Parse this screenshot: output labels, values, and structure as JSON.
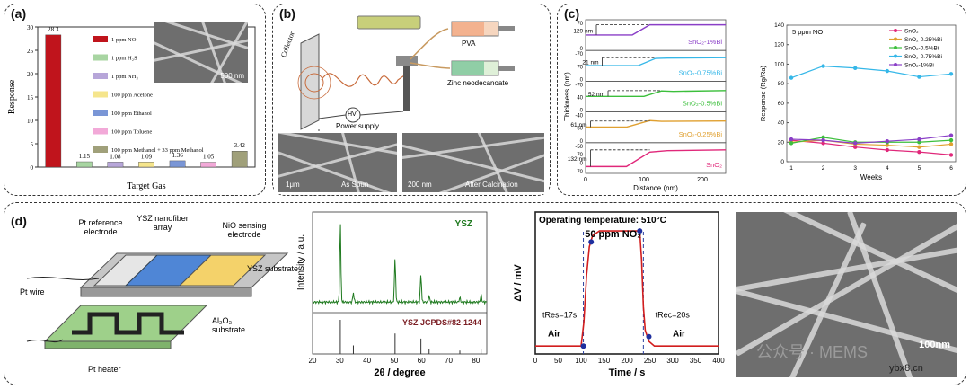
{
  "panels": {
    "a": {
      "label": "(a)"
    },
    "b": {
      "label": "(b)"
    },
    "c": {
      "label": "(c)"
    },
    "d": {
      "label": "(d)"
    }
  },
  "panel_b": {
    "collector": "Collector",
    "pva": "PVA",
    "zinc": "Zinc neodecanoate",
    "hv": "HV",
    "power": "Power supply",
    "as_spun": "As Spun",
    "after_calc": "After Calcination",
    "scale1": "1μm",
    "scale2": "200 nm"
  },
  "panel_a_sem_scale": "500 nm",
  "panel_d_schematic": {
    "pt_ref": "Pt reference electrode",
    "ysz_array": "YSZ nanofiber array",
    "nio": "NiO sensing electrode",
    "ysz_sub": "YSZ substrate",
    "pt_wire": "Pt wire",
    "al2o3": "Al₂O₃ substrate",
    "heater": "Pt heater"
  },
  "panel_d_sem_scale": "100nm",
  "watermark": "公众号 · MEMS",
  "site": "ybx8.cn",
  "chart_data": [
    {
      "type": "bar",
      "panel": "a",
      "ylabel": "Response",
      "xlabel": "Target Gas",
      "ylim": [
        0,
        30
      ],
      "yticks": [
        0,
        5,
        10,
        15,
        20,
        25,
        30
      ],
      "categories": [
        "1 ppm NO",
        "1 ppm H₂S",
        "1 ppm NH₃",
        "100 ppm Acetone",
        "100 ppm Ethanol",
        "100 ppm Toluene",
        "100 ppm Methanol + 33 ppm Methanol"
      ],
      "values": [
        28.3,
        1.15,
        1.08,
        1.09,
        1.36,
        1.05,
        3.42
      ],
      "value_labels": [
        "28.3",
        "1.15",
        "1.08",
        "1.09",
        "1.36",
        "1.05",
        "3.42"
      ],
      "colors": [
        "#c0141c",
        "#a8d5a2",
        "#b7a6d9",
        "#f5e58c",
        "#7a96d6",
        "#f2a9d8",
        "#a0a07a"
      ],
      "legend": "top-right"
    },
    {
      "type": "line",
      "panel": "c-left",
      "ylabel": "Thickness (nm)",
      "xlabel": "Distance (nm)",
      "xlim": [
        0,
        240
      ],
      "xticks": [
        0,
        100,
        200
      ],
      "series": [
        {
          "name": "SnO₂-1%Bi",
          "color": "#8a3fc7",
          "step_label": "129 nm",
          "ticks": [
            "70",
            "0"
          ],
          "x": [
            0,
            80,
            110,
            140,
            240
          ],
          "y": [
            0,
            0,
            70,
            70,
            70
          ]
        },
        {
          "name": "SnO₂-0.75%Bi",
          "color": "#35b7e8",
          "step_label": "21 nm",
          "ticks": [
            "-70",
            "70",
            "0"
          ],
          "x": [
            0,
            90,
            120,
            140,
            240
          ],
          "y": [
            0,
            0,
            50,
            52,
            55
          ]
        },
        {
          "name": "SnO₂-0.5%Bi",
          "color": "#3cbf3c",
          "step_label": "52 nm",
          "ticks": [
            "-70",
            "40",
            "0"
          ],
          "x": [
            0,
            100,
            130,
            150,
            240
          ],
          "y": [
            0,
            0,
            38,
            35,
            40
          ]
        },
        {
          "name": "SnO₂-0.25%Bi",
          "color": "#e0a030",
          "step_label": "61 nm",
          "ticks": [
            "-40",
            "50",
            "0"
          ],
          "x": [
            0,
            70,
            110,
            130,
            240
          ],
          "y": [
            0,
            0,
            45,
            40,
            42
          ]
        },
        {
          "name": "SnO₂",
          "color": "#e0287a",
          "step_label": "132 nm",
          "ticks": [
            "-50",
            "70",
            "0",
            "-70"
          ],
          "x": [
            0,
            70,
            110,
            140,
            240
          ],
          "y": [
            -60,
            -60,
            40,
            50,
            55
          ]
        }
      ]
    },
    {
      "type": "line",
      "panel": "c-right",
      "title": "5 ppm NO",
      "ylabel": "Response (Rg/Ra)",
      "xlabel": "Weeks",
      "xlim": [
        1,
        6
      ],
      "ylim": [
        0,
        140
      ],
      "xticks": [
        1,
        2,
        3,
        4,
        5,
        6
      ],
      "yticks": [
        0,
        20,
        40,
        60,
        80,
        100,
        120,
        140
      ],
      "legend": "top-right",
      "series": [
        {
          "name": "SnO₂",
          "color": "#e0287a",
          "x": [
            1,
            2,
            3,
            4,
            5,
            6
          ],
          "y": [
            22,
            19,
            15,
            12,
            10,
            7
          ]
        },
        {
          "name": "SnO₂-0.25%Bi",
          "color": "#e0a030",
          "x": [
            1,
            2,
            3,
            4,
            5,
            6
          ],
          "y": [
            20,
            22,
            18,
            17,
            15,
            18
          ]
        },
        {
          "name": "SnO₂-0.5%Bi",
          "color": "#3cbf3c",
          "x": [
            1,
            2,
            3,
            4,
            5,
            6
          ],
          "y": [
            19,
            25,
            20,
            20,
            20,
            22
          ]
        },
        {
          "name": "SnO₂-0.75%Bi",
          "color": "#35b7e8",
          "x": [
            1,
            2,
            3,
            4,
            5,
            6
          ],
          "y": [
            86,
            98,
            96,
            93,
            87,
            90
          ]
        },
        {
          "name": "SnO₂-1%Bi",
          "color": "#8a3fc7",
          "x": [
            1,
            2,
            3,
            4,
            5,
            6
          ],
          "y": [
            23,
            22,
            19,
            21,
            23,
            27
          ]
        }
      ]
    },
    {
      "type": "line",
      "panel": "d-xrd",
      "ylabel": "Intensity / a.u.",
      "xlabel": "2θ / degree",
      "xlim": [
        20,
        84
      ],
      "xticks": [
        20,
        30,
        40,
        50,
        60,
        70,
        80
      ],
      "series_label": "YSZ",
      "reference_label": "YSZ JCPDS#82-1244",
      "peaks": [
        30.2,
        35.0,
        50.3,
        59.8,
        62.8,
        74.1,
        81.9
      ],
      "peak_heights": [
        100,
        12,
        55,
        35,
        8,
        6,
        9
      ],
      "ref_lines": [
        30.2,
        35.0,
        50.3,
        59.8,
        62.8,
        74.1,
        81.9
      ],
      "ref_heights": [
        100,
        25,
        60,
        45,
        15,
        10,
        15
      ]
    },
    {
      "type": "line",
      "panel": "d-response",
      "annotation_title": "Operating temperature: 510°C",
      "gas_label": "50 ppm NO₂",
      "ylabel": "ΔV / mV",
      "xlabel": "Time / s",
      "xlim": [
        0,
        400
      ],
      "xticks": [
        0,
        50,
        100,
        150,
        200,
        250,
        300,
        350,
        400
      ],
      "ylim": [
        -5,
        85
      ],
      "t_res_label": "tRes=17s",
      "t_rec_label": "tRec=20s",
      "air_label": "Air",
      "x": [
        0,
        100,
        106,
        112,
        118,
        125,
        140,
        200,
        228,
        232,
        236,
        240,
        248,
        260,
        300,
        400
      ],
      "y": [
        0,
        0,
        15,
        45,
        63,
        70,
        73,
        73,
        73,
        55,
        25,
        10,
        3,
        0,
        0,
        0
      ],
      "markers": [
        [
          105,
          0
        ],
        [
          122,
          66
        ],
        [
          228,
          73
        ],
        [
          248,
          6
        ]
      ]
    }
  ]
}
